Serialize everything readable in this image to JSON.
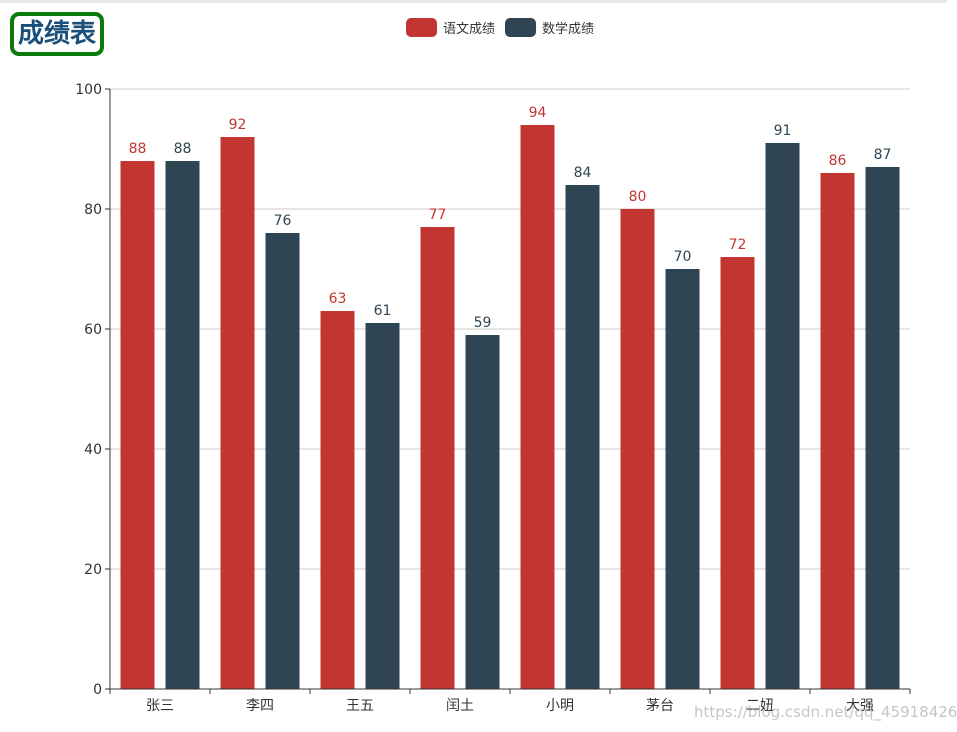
{
  "page": {
    "title": "成绩表",
    "watermark": "https://blog.csdn.net/qq_45918426"
  },
  "legend": [
    {
      "name": "语文成绩",
      "color": "#c23531"
    },
    {
      "name": "数学成绩",
      "color": "#2f4554"
    }
  ],
  "chart_data": {
    "type": "bar",
    "title": "成绩表",
    "categories": [
      "张三",
      "李四",
      "王五",
      "闰土",
      "小明",
      "茅台",
      "二妞",
      "大强"
    ],
    "series": [
      {
        "name": "语文成绩",
        "color": "#c23531",
        "values": [
          88,
          92,
          63,
          77,
          94,
          80,
          72,
          86
        ]
      },
      {
        "name": "数学成绩",
        "color": "#2f4554",
        "values": [
          88,
          76,
          61,
          59,
          84,
          70,
          91,
          87
        ]
      }
    ],
    "ylim": [
      0,
      100
    ],
    "yticks": [
      "0",
      "20",
      "40",
      "60",
      "80",
      "100"
    ],
    "grid": true,
    "legend_position": "top-center",
    "xlabel": "",
    "ylabel": ""
  }
}
